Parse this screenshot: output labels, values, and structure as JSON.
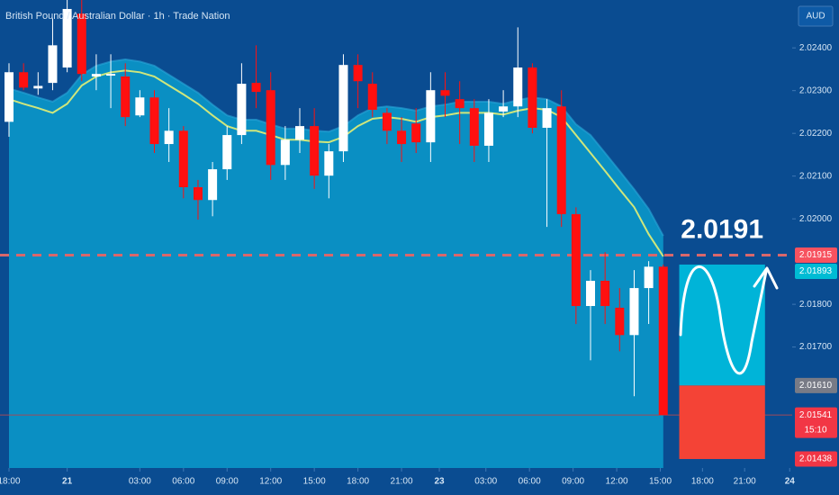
{
  "chart_data": {
    "type": "candlestick",
    "title": "British Pound / Australian Dollar · 1h · Trade Nation",
    "currency": "AUD",
    "x": [
      0,
      1,
      2,
      3,
      4,
      5,
      6,
      7,
      8,
      9,
      10,
      11,
      12,
      13,
      14,
      15,
      16,
      17,
      18,
      19,
      20,
      21,
      22,
      23,
      24,
      25,
      26,
      27,
      28,
      29,
      30,
      31,
      32,
      33,
      34,
      35,
      36,
      37,
      38,
      39,
      40,
      41,
      42,
      43,
      44,
      45
    ],
    "open": [
      2.02227,
      2.02343,
      2.02305,
      2.02318,
      2.02354,
      2.0248,
      2.02333,
      2.02335,
      2.02333,
      2.02242,
      2.02284,
      2.02175,
      2.02206,
      2.02074,
      2.02044,
      2.02116,
      2.02196,
      2.02318,
      2.02301,
      2.02126,
      2.02185,
      2.02217,
      2.02101,
      2.02158,
      2.0236,
      2.02316,
      2.02248,
      2.02206,
      2.02223,
      2.02179,
      2.02301,
      2.0228,
      2.02259,
      2.02171,
      2.02251,
      2.02263,
      2.02354,
      2.02213,
      2.02263,
      2.02011,
      2.01796,
      2.01855,
      2.01792,
      2.01728,
      2.01838,
      2.01888
    ],
    "high": [
      2.02364,
      2.02364,
      2.02343,
      2.02469,
      2.02512,
      2.02512,
      2.02385,
      2.02385,
      2.02364,
      2.02301,
      2.02301,
      2.02259,
      2.02217,
      2.02091,
      2.02133,
      2.02217,
      2.02364,
      2.02406,
      2.02343,
      2.02217,
      2.02259,
      2.02259,
      2.02175,
      2.02385,
      2.02385,
      2.02343,
      2.02259,
      2.02238,
      2.02259,
      2.02343,
      2.02343,
      2.02322,
      2.0228,
      2.0228,
      2.02301,
      2.02448,
      2.02364,
      2.0228,
      2.02301,
      2.02027,
      2.0188,
      2.01922,
      2.01838,
      2.0188,
      2.01901,
      2.01893
    ],
    "low": [
      2.02192,
      2.02301,
      2.0229,
      2.02301,
      2.02343,
      2.02322,
      2.02301,
      2.02259,
      2.02217,
      2.02238,
      2.02154,
      2.02133,
      2.02048,
      2.01998,
      2.02006,
      2.02091,
      2.02175,
      2.02259,
      2.02091,
      2.02091,
      2.02154,
      2.0207,
      2.02048,
      2.02133,
      2.02259,
      2.02238,
      2.02175,
      2.02133,
      2.02154,
      2.02133,
      2.02238,
      2.02175,
      2.02133,
      2.02133,
      2.02238,
      2.02238,
      2.022,
      2.01981,
      2.01981,
      2.01754,
      2.01669,
      2.01754,
      2.0169,
      2.01585,
      2.01754,
      2.01541
    ],
    "close": [
      2.02343,
      2.02307,
      2.02311,
      2.02406,
      2.02491,
      2.02339,
      2.02339,
      2.02339,
      2.02238,
      2.02284,
      2.02175,
      2.02206,
      2.02074,
      2.02044,
      2.02116,
      2.02196,
      2.02316,
      2.02297,
      2.02126,
      2.02185,
      2.02217,
      2.02101,
      2.02158,
      2.0236,
      2.02322,
      2.02255,
      2.02206,
      2.02175,
      2.02179,
      2.02301,
      2.02288,
      2.02259,
      2.02171,
      2.02248,
      2.02263,
      2.02354,
      2.02213,
      2.02259,
      2.02011,
      2.01796,
      2.01855,
      2.01796,
      2.01728,
      2.01838,
      2.01888,
      2.01541
    ],
    "up_color": "#ffffff",
    "down_color": "#ff1010",
    "ma": {
      "color": "#cfe67c",
      "values": [
        2.0228,
        2.02269,
        2.02259,
        2.02248,
        2.02269,
        2.02312,
        2.02333,
        2.02343,
        2.02347,
        2.02343,
        2.02333,
        2.02312,
        2.02291,
        2.02269,
        2.02242,
        2.02217,
        2.02206,
        2.02206,
        2.02196,
        2.02185,
        2.02185,
        2.02181,
        2.02179,
        2.02192,
        2.02217,
        2.02234,
        2.02238,
        2.02234,
        2.02227,
        2.02238,
        2.02242,
        2.02248,
        2.02248,
        2.02248,
        2.02244,
        2.02253,
        2.02259,
        2.02255,
        2.02238,
        2.02196,
        2.02154,
        2.02112,
        2.02069,
        2.02027,
        2.01964,
        2.01912
      ]
    },
    "band": {
      "color": "#0a8fc3",
      "values": [
        2.02305,
        2.02295,
        2.02284,
        2.02274,
        2.02295,
        2.02337,
        2.02358,
        2.02368,
        2.02373,
        2.02368,
        2.02358,
        2.02337,
        2.02316,
        2.02295,
        2.02267,
        2.02242,
        2.02232,
        2.02232,
        2.02221,
        2.02211,
        2.02211,
        2.02206,
        2.02204,
        2.02217,
        2.02242,
        2.02259,
        2.02263,
        2.02259,
        2.02253,
        2.02263,
        2.02267,
        2.02274,
        2.02274,
        2.02274,
        2.02269,
        2.02278,
        2.02284,
        2.0228,
        2.02263,
        2.02221,
        2.02196,
        2.02154,
        2.02112,
        2.02069,
        2.02023,
        2.0196
      ]
    },
    "xlim": [
      -0.62,
      53.87
    ],
    "ylim": [
      2.01417,
      2.02512
    ],
    "yticks": [
      {
        "value": 2.024,
        "label": "2.02400"
      },
      {
        "value": 2.023,
        "label": "2.02300"
      },
      {
        "value": 2.022,
        "label": "2.02200"
      },
      {
        "value": 2.021,
        "label": "2.02100"
      },
      {
        "value": 2.02,
        "label": "2.02000"
      },
      {
        "value": 2.018,
        "label": "2.01800"
      },
      {
        "value": 2.017,
        "label": "2.01700"
      }
    ],
    "xticks": [
      {
        "value": 0,
        "label": "18:00"
      },
      {
        "value": 4,
        "label": "21"
      },
      {
        "value": 9,
        "label": "03:00"
      },
      {
        "value": 12,
        "label": "06:00"
      },
      {
        "value": 15,
        "label": "09:00"
      },
      {
        "value": 18,
        "label": "12:00"
      },
      {
        "value": 21,
        "label": "15:00"
      },
      {
        "value": 24,
        "label": "18:00"
      },
      {
        "value": 27,
        "label": "21:00"
      },
      {
        "value": 29.6,
        "label": "23"
      },
      {
        "value": 32.8,
        "label": "03:00"
      },
      {
        "value": 35.8,
        "label": "06:00"
      },
      {
        "value": 38.8,
        "label": "09:00"
      },
      {
        "value": 41.8,
        "label": "12:00"
      },
      {
        "value": 44.8,
        "label": "15:00"
      },
      {
        "value": 47.7,
        "label": "18:00"
      },
      {
        "value": 50.6,
        "label": "21:00"
      },
      {
        "value": 53.7,
        "label": "24"
      }
    ],
    "price_labels": [
      {
        "value": 2.01915,
        "label": "2.01915",
        "color": "#f7525f"
      },
      {
        "value": 2.01893,
        "label": "2.01893",
        "color": "#00bcd4"
      },
      {
        "value": 2.0161,
        "label": "2.01610",
        "color": "#787b86"
      },
      {
        "value": 2.01541,
        "label": "2.01541",
        "sub": "15:10",
        "color": "#f23645"
      },
      {
        "value": 2.01438,
        "label": "2.01438",
        "color": "#f23645"
      }
    ],
    "level_color": "#d9676b",
    "annotation": "2.0191",
    "position": {
      "start": 46.1,
      "end": 52.0,
      "target_color": "#00b4d8",
      "stop_color": "#f44336"
    }
  }
}
